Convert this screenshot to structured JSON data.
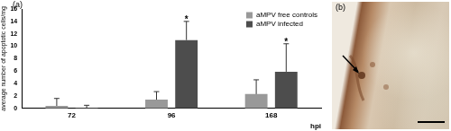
{
  "panel_labels": [
    "(a)",
    "(b)"
  ],
  "chart_data": {
    "type": "bar",
    "y_label": "average number of apoptotic cells/mg",
    "x_label": "hpi",
    "categories": [
      "72",
      "96",
      "168"
    ],
    "series": [
      {
        "name": "aMPV free controls",
        "color": "#999999",
        "values": [
          0.4,
          1.4,
          2.3
        ],
        "errors": [
          1.2,
          1.3,
          2.3
        ]
      },
      {
        "name": "aMPV infected",
        "color": "#4d4d4d",
        "values": [
          0.1,
          11,
          5.9
        ],
        "errors": [
          0.4,
          3.0,
          4.5
        ]
      }
    ],
    "annotations": [
      {
        "text": "*",
        "x": "96",
        "series": "aMPV infected"
      },
      {
        "text": "*",
        "x": "168",
        "series": "aMPV infected"
      }
    ],
    "ylim": [
      0,
      16
    ],
    "yticks": [
      0,
      2,
      4,
      6,
      8,
      10,
      12,
      14,
      16
    ],
    "grid": false,
    "legend": "upper right"
  }
}
